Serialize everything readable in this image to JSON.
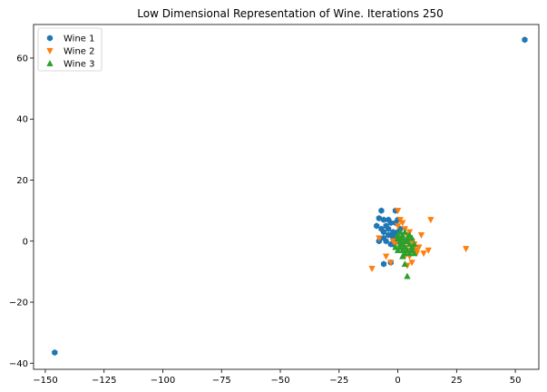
{
  "chart_data": {
    "type": "scatter",
    "title": "Low Dimensional Representation of Wine. Iterations 250",
    "xlabel": "",
    "ylabel": "",
    "xlim": [
      -155,
      60
    ],
    "ylim": [
      -42,
      71
    ],
    "xticks": [
      -150,
      -125,
      -100,
      -75,
      -50,
      -25,
      0,
      25,
      50
    ],
    "xtick_labels": [
      "−150",
      "−125",
      "−100",
      "−75",
      "−50",
      "−25",
      "0",
      "25",
      "50"
    ],
    "yticks": [
      -40,
      -20,
      0,
      20,
      40,
      60
    ],
    "ytick_labels": [
      "−40",
      "−20",
      "0",
      "20",
      "40",
      "60"
    ],
    "grid": false,
    "legend_position": "top-left",
    "series": [
      {
        "name": "Wine 1",
        "marker": "hexagon",
        "color": "#1f77b4",
        "points": [
          [
            -146,
            -36.5
          ],
          [
            54,
            66
          ],
          [
            -7,
            10
          ],
          [
            -8,
            7.5
          ],
          [
            -6,
            7
          ],
          [
            -4,
            7
          ],
          [
            -3,
            6
          ],
          [
            -5,
            5
          ],
          [
            -9,
            5
          ],
          [
            -7,
            4
          ],
          [
            -6,
            3
          ],
          [
            -4,
            4
          ],
          [
            -2,
            3
          ],
          [
            -3,
            2
          ],
          [
            -1,
            2
          ],
          [
            -6,
            1
          ],
          [
            -8,
            0
          ],
          [
            -5,
            0
          ],
          [
            -3,
            -1
          ],
          [
            -2,
            1
          ],
          [
            0,
            3
          ],
          [
            -1,
            6
          ],
          [
            0,
            7
          ],
          [
            -1,
            10
          ],
          [
            -6,
            -7.5
          ],
          [
            -3,
            -7
          ],
          [
            1,
            4
          ],
          [
            -2,
            -1
          ],
          [
            0,
            0
          ],
          [
            -4,
            2
          ]
        ]
      },
      {
        "name": "Wine 2",
        "marker": "triangle-down",
        "color": "#ff7f0e",
        "points": [
          [
            -11,
            -9
          ],
          [
            -8,
            1
          ],
          [
            -5,
            -5
          ],
          [
            -3,
            -7
          ],
          [
            0,
            10
          ],
          [
            1,
            7
          ],
          [
            2,
            6
          ],
          [
            3,
            4
          ],
          [
            4,
            2
          ],
          [
            5,
            1
          ],
          [
            6,
            0
          ],
          [
            7,
            -1
          ],
          [
            8,
            -3
          ],
          [
            9,
            -2
          ],
          [
            10,
            2
          ],
          [
            11,
            -4
          ],
          [
            13,
            -3
          ],
          [
            14,
            7
          ],
          [
            29,
            -2.5
          ],
          [
            5,
            -5
          ],
          [
            6,
            -7
          ],
          [
            4,
            -8
          ],
          [
            3,
            -2
          ],
          [
            2,
            0
          ],
          [
            1,
            1
          ],
          [
            0,
            5
          ],
          [
            -1,
            -1
          ],
          [
            -2,
            0
          ],
          [
            5,
            3
          ],
          [
            7,
            -2
          ],
          [
            8,
            -4
          ],
          [
            3,
            -5
          ],
          [
            6,
            -2
          ],
          [
            4,
            -3
          ]
        ]
      },
      {
        "name": "Wine 3",
        "marker": "triangle-up",
        "color": "#2ca02c",
        "points": [
          [
            0,
            2
          ],
          [
            1,
            0
          ],
          [
            2,
            -1
          ],
          [
            3,
            -2
          ],
          [
            4,
            -3
          ],
          [
            5,
            -4
          ],
          [
            6,
            -2
          ],
          [
            7,
            -1
          ],
          [
            3,
            3
          ],
          [
            2,
            1
          ],
          [
            1,
            -2
          ],
          [
            0,
            -3
          ],
          [
            4,
            0
          ],
          [
            5,
            2
          ],
          [
            6,
            1
          ],
          [
            3,
            -4
          ],
          [
            2,
            -3
          ],
          [
            4,
            -11.5
          ],
          [
            3,
            -7.5
          ],
          [
            1,
            -1
          ],
          [
            2,
            2
          ],
          [
            5,
            -1
          ],
          [
            4,
            1
          ],
          [
            3,
            0
          ],
          [
            6,
            -3
          ],
          [
            7,
            -4
          ],
          [
            2,
            -5
          ],
          [
            1,
            3
          ],
          [
            0,
            1
          ],
          [
            -1,
            -2
          ]
        ]
      }
    ]
  }
}
